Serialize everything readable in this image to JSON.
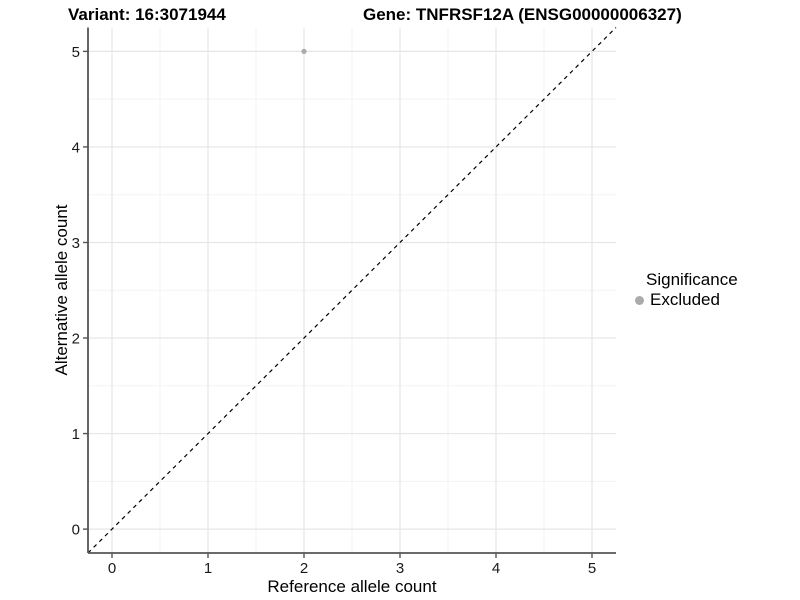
{
  "header": {
    "title_variant": "Variant: 16:3071944",
    "title_gene": "Gene: TNFRSF12A (ENSG00000006327)"
  },
  "axes": {
    "x_label": "Reference allele count",
    "y_label": "Alternative allele count"
  },
  "legend": {
    "title": "Significance",
    "items": [
      {
        "label": "Excluded",
        "color": "#ababab"
      }
    ]
  },
  "chart_data": {
    "type": "scatter",
    "title_left": "Variant: 16:3071944",
    "title_right": "Gene: TNFRSF12A (ENSG00000006327)",
    "xlabel": "Reference allele count",
    "ylabel": "Alternative allele count",
    "xlim": [
      -0.25,
      5.25
    ],
    "ylim": [
      -0.25,
      5.25
    ],
    "xticks": [
      0,
      1,
      2,
      3,
      4,
      5
    ],
    "yticks": [
      0,
      1,
      2,
      3,
      4,
      5
    ],
    "minor_xticks": [
      0.5,
      1.5,
      2.5,
      3.5,
      4.5
    ],
    "minor_yticks": [
      0.5,
      1.5,
      2.5,
      3.5,
      4.5
    ],
    "grid": "major+minor",
    "legend_position": "right",
    "legend_title": "Significance",
    "series": [
      {
        "name": "Excluded",
        "color": "#ababab",
        "points": [
          {
            "x": 2,
            "y": 5
          }
        ]
      }
    ],
    "reference_line": {
      "slope": 1,
      "intercept": 0,
      "style": "dashed",
      "color": "#000000"
    }
  },
  "colors": {
    "background": "#ffffff",
    "grid_major": "#e6e6e6",
    "grid_minor": "#f3f3f3",
    "axis_line": "#545454",
    "tick_text": "#1a1a1a",
    "point": "#ababab"
  }
}
